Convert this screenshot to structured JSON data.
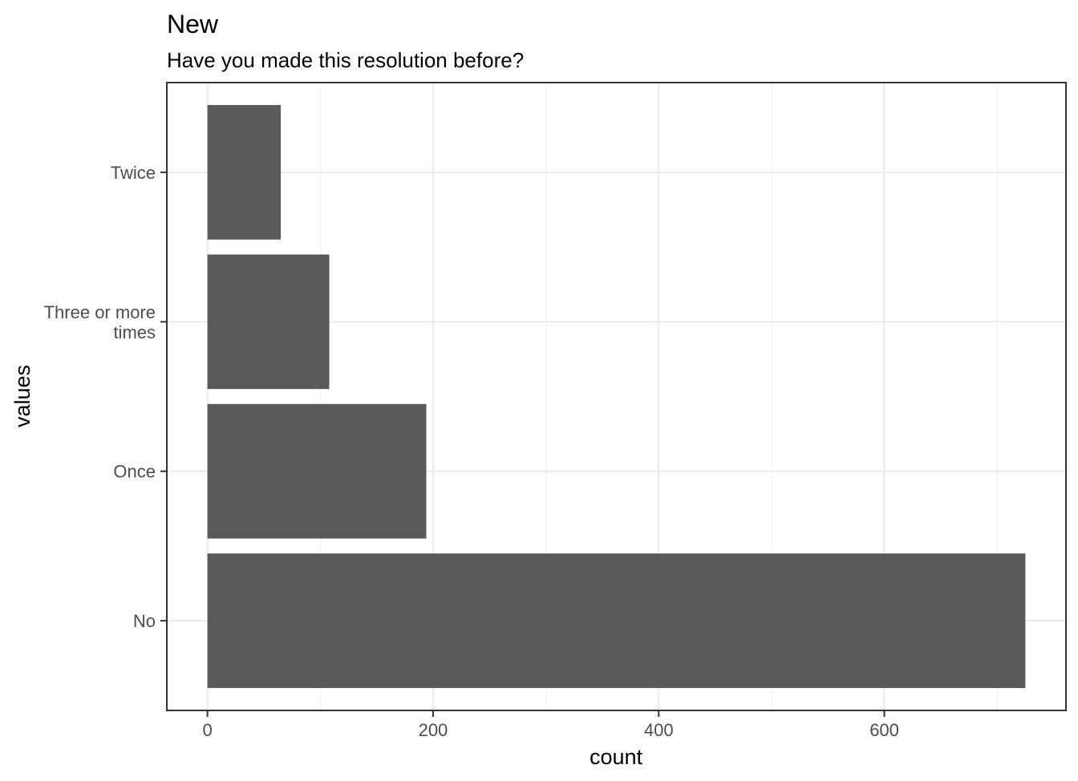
{
  "chart_data": {
    "type": "bar",
    "orientation": "horizontal",
    "title": "New",
    "subtitle": "Have you made this resolution before?",
    "xlabel": "count",
    "ylabel": "values",
    "categories": [
      [
        "No"
      ],
      [
        "Once"
      ],
      [
        "Three or more",
        "times"
      ],
      [
        "Twice"
      ]
    ],
    "values": [
      725,
      194,
      108,
      65
    ],
    "xlim": [
      -36,
      761
    ],
    "x_ticks": [
      0,
      200,
      400,
      600
    ],
    "x_tick_labels": [
      "0",
      "200",
      "400",
      "600"
    ],
    "grid": true,
    "bar_color": "#595959",
    "grid_major_color": "#ebebeb",
    "grid_minor_color": "#f2f2f2",
    "panel_border_color": "#333333"
  }
}
